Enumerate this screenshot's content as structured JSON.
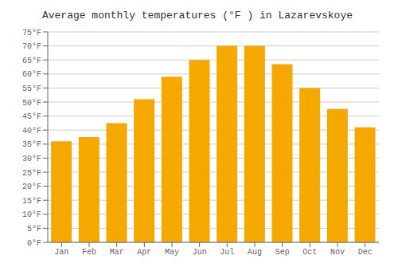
{
  "chart_data": {
    "type": "bar",
    "title": "Average monthly temperatures (°F ) in Lazarevskoye",
    "categories": [
      "Jan",
      "Feb",
      "Mar",
      "Apr",
      "May",
      "Jun",
      "Jul",
      "Aug",
      "Sep",
      "Oct",
      "Nov",
      "Dec"
    ],
    "values": [
      36,
      37.5,
      42.5,
      51,
      59,
      65,
      70,
      70,
      63.5,
      55,
      47.5,
      41
    ],
    "color": "#F5A800",
    "ylim": [
      0,
      75
    ],
    "yticks": [
      {
        "value": 0,
        "label": "0°F"
      },
      {
        "value": 5,
        "label": "5°F"
      },
      {
        "value": 10,
        "label": "10°F"
      },
      {
        "value": 15,
        "label": "15°F"
      },
      {
        "value": 20,
        "label": "20°F"
      },
      {
        "value": 25,
        "label": "25°F"
      },
      {
        "value": 30,
        "label": "30°F"
      },
      {
        "value": 35,
        "label": "35°F"
      },
      {
        "value": 40,
        "label": "40°F"
      },
      {
        "value": 45,
        "label": "45°F"
      },
      {
        "value": 50,
        "label": "50°F"
      },
      {
        "value": 55,
        "label": "55°F"
      },
      {
        "value": 60,
        "label": "60°F"
      },
      {
        "value": 65,
        "label": "65°F"
      },
      {
        "value": 70,
        "label": "70°F"
      },
      {
        "value": 75,
        "label": "75°F"
      }
    ],
    "grid": true
  }
}
